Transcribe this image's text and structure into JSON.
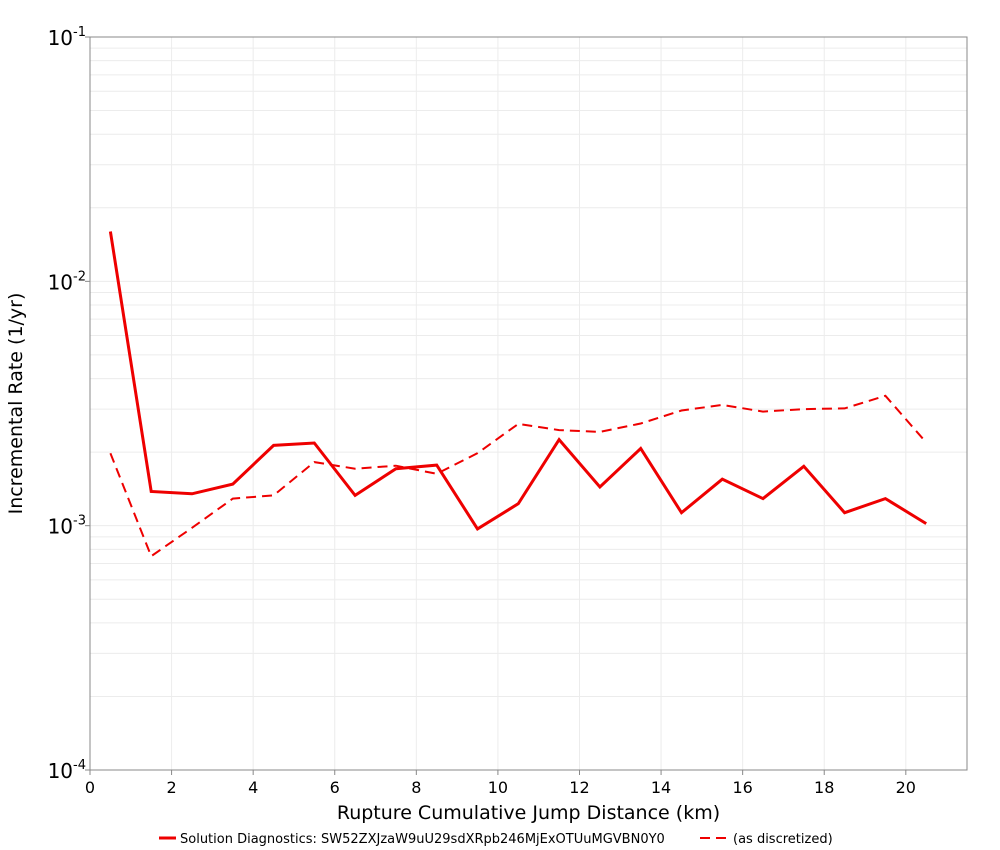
{
  "chart_data": {
    "type": "line",
    "xlabel": "Rupture Cumulative Jump Distance (km)",
    "ylabel": "Incremental Rate (1/yr)",
    "xlim": [
      0,
      21.5
    ],
    "ylim": [
      0.0001,
      0.1
    ],
    "yscale": "log",
    "grid": true,
    "legend_position": "bottom",
    "x_ticks": [
      0,
      2,
      4,
      6,
      8,
      10,
      12,
      14,
      16,
      18,
      20
    ],
    "y_ticks": [
      {
        "value": 0.0001,
        "base": "10",
        "exp": "-4"
      },
      {
        "value": 0.001,
        "base": "10",
        "exp": "-3"
      },
      {
        "value": 0.01,
        "base": "10",
        "exp": "-2"
      },
      {
        "value": 0.1,
        "base": "10",
        "exp": "-1"
      }
    ],
    "x": [
      0.5,
      1.5,
      2.5,
      3.5,
      4.5,
      5.5,
      6.5,
      7.5,
      8.5,
      9.5,
      10.5,
      11.5,
      12.5,
      13.5,
      14.5,
      15.5,
      16.5,
      17.5,
      18.5,
      19.5,
      20.5
    ],
    "series": [
      {
        "name": "Solution Diagnostics: SW52ZXJzaW9uU29sdXRpb246MjExOTUuMGVBN0Y0",
        "color": "#ee0000",
        "style": "solid",
        "values": [
          0.016,
          0.00138,
          0.00135,
          0.00148,
          0.00213,
          0.00218,
          0.00133,
          0.00171,
          0.00177,
          0.00097,
          0.00123,
          0.00225,
          0.00144,
          0.00207,
          0.00113,
          0.00155,
          0.00129,
          0.00175,
          0.00113,
          0.00129,
          0.00102
        ]
      },
      {
        "name": "(as discretized)",
        "color": "#ee0000",
        "style": "dashed",
        "values": [
          0.00198,
          0.00075,
          0.00098,
          0.00129,
          0.00133,
          0.00182,
          0.00171,
          0.00176,
          0.00163,
          0.00198,
          0.00261,
          0.00246,
          0.00242,
          0.00262,
          0.00296,
          0.00312,
          0.00293,
          0.003,
          0.00302,
          0.0034,
          0.00219
        ]
      }
    ]
  }
}
